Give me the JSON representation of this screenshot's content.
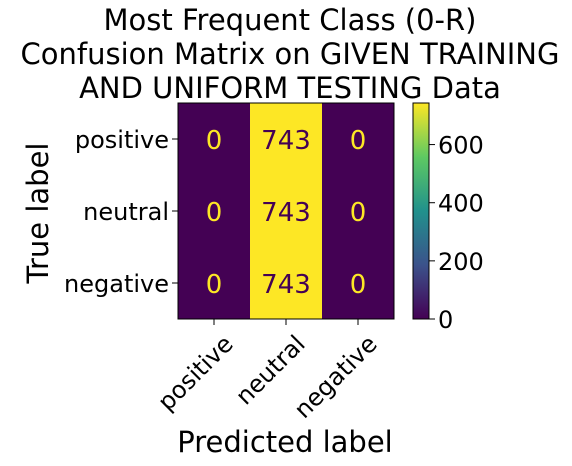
{
  "chart_data": {
    "type": "heatmap",
    "title": [
      "Most Frequent Class (0-R)",
      "Confusion Matrix on GIVEN TRAINING",
      "AND UNIFORM TESTING Data"
    ],
    "xlabel": "Predicted label",
    "ylabel": "True label",
    "x_categories": [
      "positive",
      "neutral",
      "negative"
    ],
    "y_categories": [
      "positive",
      "neutral",
      "negative"
    ],
    "values": [
      [
        0,
        743,
        0
      ],
      [
        0,
        743,
        0
      ],
      [
        0,
        743,
        0
      ]
    ],
    "colorscale": "viridis",
    "vmin": 0,
    "vmax": 743,
    "colorbar_ticks": [
      0,
      200,
      400,
      600
    ],
    "low_color": "#440154",
    "high_color": "#fde725"
  }
}
